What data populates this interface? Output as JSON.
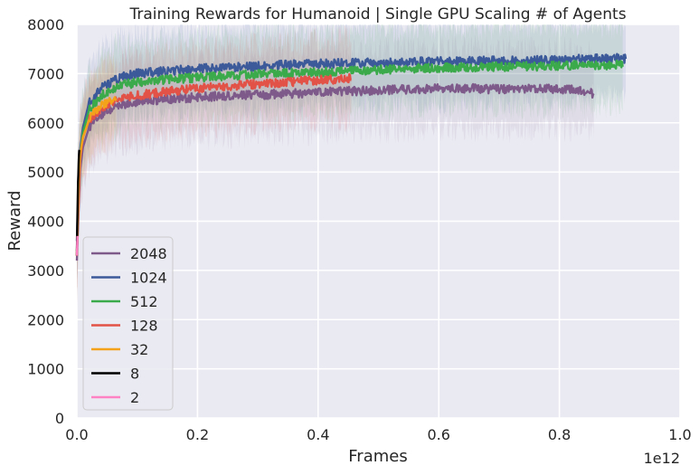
{
  "chart_data": {
    "type": "line",
    "title": "Training Rewards for Humanoid | Single GPU Scaling # of Agents",
    "xlabel": "Frames",
    "ylabel": "Reward",
    "x_multiplier_label": "1e12",
    "xlim": [
      0.0,
      1.0
    ],
    "ylim": [
      0,
      8000
    ],
    "x_ticks": [
      "0.0",
      "0.2",
      "0.4",
      "0.6",
      "0.8",
      "1.0"
    ],
    "y_ticks": [
      "0",
      "1000",
      "2000",
      "3000",
      "4000",
      "5000",
      "6000",
      "7000",
      "8000"
    ],
    "grid": true,
    "legend_position": "lower-left",
    "background_color": "#eaeaf2",
    "grid_color": "#ffffff",
    "series": [
      {
        "name": "2048",
        "color": "#7e5a8a",
        "x": [
          0.0,
          0.005,
          0.01,
          0.02,
          0.04,
          0.06,
          0.08,
          0.1,
          0.15,
          0.2,
          0.25,
          0.3,
          0.35,
          0.4,
          0.45,
          0.5,
          0.55,
          0.6,
          0.65,
          0.7,
          0.75,
          0.8,
          0.85,
          0.857
        ],
        "values": [
          3200,
          5000,
          5500,
          5900,
          6150,
          6300,
          6380,
          6430,
          6480,
          6520,
          6550,
          6570,
          6590,
          6620,
          6640,
          6660,
          6680,
          6700,
          6700,
          6680,
          6690,
          6690,
          6650,
          6550
        ]
      },
      {
        "name": "1024",
        "color": "#3c5a99",
        "x": [
          0.0,
          0.005,
          0.01,
          0.02,
          0.04,
          0.06,
          0.08,
          0.1,
          0.15,
          0.2,
          0.25,
          0.3,
          0.35,
          0.4,
          0.45,
          0.5,
          0.55,
          0.6,
          0.65,
          0.7,
          0.75,
          0.8,
          0.85,
          0.9,
          0.91
        ],
        "values": [
          3600,
          5400,
          5900,
          6400,
          6700,
          6850,
          6950,
          7000,
          7050,
          7100,
          7130,
          7150,
          7180,
          7200,
          7220,
          7230,
          7240,
          7250,
          7250,
          7260,
          7270,
          7280,
          7300,
          7320,
          7300
        ]
      },
      {
        "name": "512",
        "color": "#3aaa4a",
        "x": [
          0.0,
          0.005,
          0.01,
          0.02,
          0.04,
          0.06,
          0.08,
          0.1,
          0.15,
          0.2,
          0.25,
          0.3,
          0.35,
          0.4,
          0.45,
          0.5,
          0.55,
          0.6,
          0.65,
          0.7,
          0.75,
          0.8,
          0.85,
          0.9,
          0.905
        ],
        "values": [
          3400,
          5300,
          5800,
          6250,
          6550,
          6700,
          6780,
          6820,
          6880,
          6920,
          6960,
          6990,
          7010,
          7030,
          7050,
          7080,
          7100,
          7120,
          7130,
          7140,
          7150,
          7160,
          7170,
          7180,
          7180
        ]
      },
      {
        "name": "128",
        "color": "#e25246",
        "x": [
          0.0,
          0.005,
          0.01,
          0.02,
          0.04,
          0.06,
          0.08,
          0.1,
          0.15,
          0.2,
          0.25,
          0.3,
          0.35,
          0.4,
          0.45,
          0.455
        ],
        "values": [
          3300,
          5200,
          5700,
          6050,
          6300,
          6430,
          6500,
          6560,
          6630,
          6700,
          6750,
          6790,
          6830,
          6870,
          6900,
          6920
        ]
      },
      {
        "name": "32",
        "color": "#f5a21b",
        "x": [
          0.0,
          0.003,
          0.006,
          0.01,
          0.02,
          0.03,
          0.04,
          0.05,
          0.06,
          0.065
        ],
        "values": [
          3300,
          4900,
          5400,
          5700,
          6050,
          6250,
          6350,
          6420,
          6480,
          6500
        ]
      },
      {
        "name": "8",
        "color": "#000000",
        "x": [
          0.0,
          0.001,
          0.002,
          0.003,
          0.004
        ],
        "values": [
          3300,
          4200,
          4800,
          5200,
          5450
        ]
      },
      {
        "name": "2",
        "color": "#ff82c4",
        "x": [
          0.0,
          0.0005,
          0.001
        ],
        "values": [
          3300,
          3500,
          3700
        ]
      }
    ]
  }
}
